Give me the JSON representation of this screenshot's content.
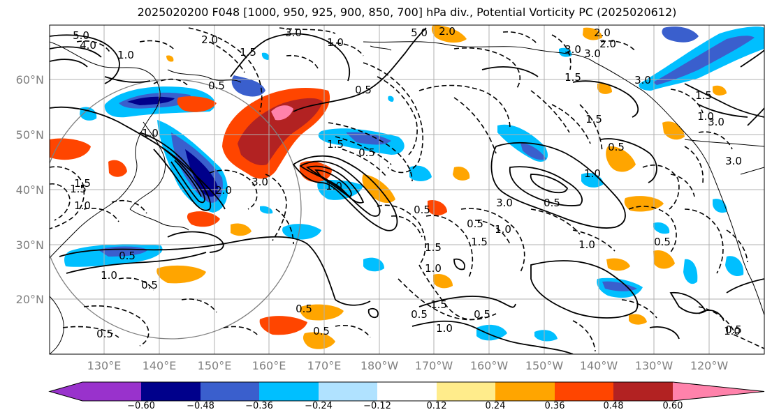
{
  "title": "2025020200 F048 [1000, 950, 925, 900, 850, 700] hPa div., Potential Vorticity PC (2025020612)",
  "lat_ticks": [
    "60°N",
    "50°N",
    "40°N",
    "30°N",
    "20°N"
  ],
  "lon_ticks": [
    "130°E",
    "140°E",
    "150°E",
    "160°E",
    "170°E",
    "180°W",
    "170°W",
    "160°W",
    "150°W",
    "140°W",
    "130°W",
    "120°W"
  ],
  "colorbar": {
    "ticks": [
      "−0.60",
      "−0.48",
      "−0.36",
      "−0.24",
      "−0.12",
      "0.12",
      "0.24",
      "0.36",
      "0.48",
      "0.60"
    ],
    "colors": [
      "#9932cc",
      "#00008b",
      "#3a5fcd",
      "#00bfff",
      "#b0e2ff",
      "#ffffff",
      "#ffec8b",
      "#ffa500",
      "#ff4500",
      "#b22222",
      "#ff82ab"
    ]
  },
  "contour_labels": [
    "5.0",
    "4.0",
    "3.0",
    "2.0",
    "1.5",
    "1.0",
    "0.5",
    "1.0",
    "2.0",
    "3.0",
    "5.0",
    "3.0",
    "2.0",
    "1.5",
    "3.0",
    "1.0",
    "0.5",
    "1.5",
    "0.5",
    "1.0",
    "3.0",
    "2.0",
    "1.5",
    "1.0",
    "0.5",
    "1.0",
    "3.0",
    "1.5",
    "1.0",
    "0.5",
    "0.5",
    "1.0",
    "0.5",
    "1.5",
    "0.5",
    "1.0",
    "0.5",
    "0.5",
    "0.5",
    "1.0",
    "1.5",
    "1.0",
    "0.5",
    "0.5",
    "1.0",
    "0.5",
    "0.5",
    "1.5",
    "0.5",
    "1.0",
    "1.5",
    "3.0",
    "3.0",
    "2.0",
    "1.5"
  ]
}
